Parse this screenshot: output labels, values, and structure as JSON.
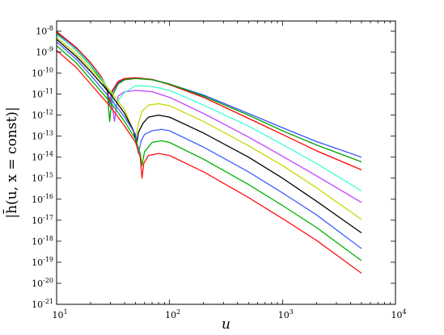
{
  "chart_data": {
    "type": "line",
    "title": "",
    "xlabel": "u",
    "ylabel": "|h̄(u, x = const)|",
    "xscale": "log",
    "yscale": "log",
    "xlim": [
      10,
      10000
    ],
    "ylim": [
      1e-21,
      3e-08
    ],
    "grid": false,
    "x_ticks": [
      {
        "value": 10,
        "base": "10",
        "exp": "1"
      },
      {
        "value": 100,
        "base": "10",
        "exp": "2"
      },
      {
        "value": 1000,
        "base": "10",
        "exp": "3"
      },
      {
        "value": 10000,
        "base": "10",
        "exp": "4"
      }
    ],
    "y_ticks": [
      {
        "value": 1e-08,
        "base": "10",
        "exp": "-8"
      },
      {
        "value": 1e-09,
        "base": "10",
        "exp": "-9"
      },
      {
        "value": 1e-10,
        "base": "10",
        "exp": "-10"
      },
      {
        "value": 1e-11,
        "base": "10",
        "exp": "-11"
      },
      {
        "value": 1e-12,
        "base": "10",
        "exp": "-12"
      },
      {
        "value": 1e-13,
        "base": "10",
        "exp": "-13"
      },
      {
        "value": 1e-14,
        "base": "10",
        "exp": "-14"
      },
      {
        "value": 1e-15,
        "base": "10",
        "exp": "-15"
      },
      {
        "value": 1e-16,
        "base": "10",
        "exp": "-16"
      },
      {
        "value": 1e-17,
        "base": "10",
        "exp": "-17"
      },
      {
        "value": 1e-18,
        "base": "10",
        "exp": "-18"
      },
      {
        "value": 1e-19,
        "base": "10",
        "exp": "-19"
      },
      {
        "value": 1e-20,
        "base": "10",
        "exp": "-20"
      },
      {
        "value": 1e-21,
        "base": "10",
        "exp": "-21"
      }
    ],
    "series": [
      {
        "color": "#3050ff",
        "points": [
          [
            10,
            9e-09
          ],
          [
            15,
            1.5e-09
          ],
          [
            20,
            3e-10
          ],
          [
            25,
            6e-11
          ],
          [
            28,
            1.8e-11
          ],
          [
            29.5,
            3e-12
          ],
          [
            31,
            1.2e-11
          ],
          [
            35,
            3.5e-11
          ],
          [
            40,
            5e-11
          ],
          [
            50,
            5.5e-11
          ],
          [
            70,
            5e-11
          ],
          [
            100,
            3e-11
          ],
          [
            200,
            9e-12
          ],
          [
            500,
            1.2e-12
          ],
          [
            1000,
            2.5e-13
          ],
          [
            2000,
            5.5e-14
          ],
          [
            5000,
            1e-14
          ]
        ]
      },
      {
        "color": "#ff0000",
        "points": [
          [
            10,
            9.5e-09
          ],
          [
            15,
            1.6e-09
          ],
          [
            20,
            3.1e-10
          ],
          [
            25,
            6.5e-11
          ],
          [
            28,
            2e-11
          ],
          [
            29.5,
            4e-12
          ],
          [
            31,
            1.4e-11
          ],
          [
            35,
            4e-11
          ],
          [
            40,
            5.5e-11
          ],
          [
            50,
            6e-11
          ],
          [
            70,
            5e-11
          ],
          [
            100,
            2.8e-11
          ],
          [
            200,
            7e-12
          ],
          [
            500,
            7e-13
          ],
          [
            1000,
            1.2e-13
          ],
          [
            2000,
            2e-14
          ],
          [
            5000,
            2.5e-15
          ]
        ]
      },
      {
        "color": "#00a000",
        "points": [
          [
            10,
            8e-09
          ],
          [
            15,
            1.2e-09
          ],
          [
            20,
            2.3e-10
          ],
          [
            25,
            4.5e-11
          ],
          [
            28,
            1.4e-11
          ],
          [
            29.5,
            5e-13
          ],
          [
            31,
            8e-12
          ],
          [
            35,
            3e-11
          ],
          [
            40,
            4.8e-11
          ],
          [
            50,
            5.5e-11
          ],
          [
            70,
            4.8e-11
          ],
          [
            100,
            3e-11
          ],
          [
            200,
            8e-12
          ],
          [
            500,
            1e-12
          ],
          [
            1000,
            1.8e-13
          ],
          [
            2000,
            3.8e-14
          ],
          [
            5000,
            6e-15
          ]
        ]
      },
      {
        "color": "#c040ff",
        "points": [
          [
            10,
            7e-09
          ],
          [
            15,
            1.3e-09
          ],
          [
            20,
            2.6e-10
          ],
          [
            25,
            5.5e-11
          ],
          [
            30,
            1.2e-11
          ],
          [
            32.5,
            5e-13
          ],
          [
            35,
            8e-12
          ],
          [
            40,
            1.3e-11
          ],
          [
            50,
            1.5e-11
          ],
          [
            70,
            1.3e-11
          ],
          [
            100,
            7e-12
          ],
          [
            200,
            1.2e-12
          ],
          [
            500,
            9e-14
          ],
          [
            1000,
            1.1e-14
          ],
          [
            2000,
            1.3e-15
          ],
          [
            5000,
            7e-17
          ]
        ]
      },
      {
        "color": "#40ffd0",
        "points": [
          [
            10,
            6.5e-09
          ],
          [
            15,
            1.3e-09
          ],
          [
            20,
            2.5e-10
          ],
          [
            25,
            5.5e-11
          ],
          [
            30,
            1.2e-11
          ],
          [
            33,
            2.5e-12
          ],
          [
            36,
            6e-12
          ],
          [
            40,
            1.2e-11
          ],
          [
            50,
            2.5e-11
          ],
          [
            70,
            2.3e-11
          ],
          [
            100,
            1.5e-11
          ],
          [
            200,
            3e-12
          ],
          [
            500,
            3e-13
          ],
          [
            1000,
            4e-14
          ],
          [
            2000,
            5e-15
          ],
          [
            5000,
            2.5e-16
          ]
        ]
      },
      {
        "color": "#c8d800",
        "points": [
          [
            10,
            5e-09
          ],
          [
            15,
            8e-10
          ],
          [
            20,
            1.6e-10
          ],
          [
            30,
            1.4e-11
          ],
          [
            40,
            1.8e-12
          ],
          [
            46,
            3e-13
          ],
          [
            50,
            8e-14
          ],
          [
            53,
            4e-13
          ],
          [
            57,
            1.5e-12
          ],
          [
            65,
            3e-12
          ],
          [
            80,
            3.5e-12
          ],
          [
            100,
            2.8e-12
          ],
          [
            200,
            5e-13
          ],
          [
            500,
            3.5e-14
          ],
          [
            1000,
            4e-15
          ],
          [
            2000,
            3.5e-16
          ],
          [
            5000,
            1.1e-17
          ]
        ]
      },
      {
        "color": "#000000",
        "points": [
          [
            10,
            4e-09
          ],
          [
            15,
            6e-10
          ],
          [
            20,
            1.2e-10
          ],
          [
            30,
            1e-11
          ],
          [
            40,
            1.2e-12
          ],
          [
            48,
            1.8e-13
          ],
          [
            51,
            4e-14
          ],
          [
            53,
            1.5e-13
          ],
          [
            58,
            4e-13
          ],
          [
            65,
            8e-13
          ],
          [
            80,
            1e-12
          ],
          [
            100,
            8e-13
          ],
          [
            200,
            1.4e-13
          ],
          [
            500,
            1e-14
          ],
          [
            1000,
            1e-15
          ],
          [
            2000,
            8e-17
          ],
          [
            5000,
            2.5e-18
          ]
        ]
      },
      {
        "color": "#4060ff",
        "points": [
          [
            10,
            3e-09
          ],
          [
            15,
            4.5e-10
          ],
          [
            20,
            8e-11
          ],
          [
            30,
            6e-12
          ],
          [
            40,
            8e-13
          ],
          [
            50,
            1.2e-13
          ],
          [
            53,
            1.5e-14
          ],
          [
            56,
            6e-14
          ],
          [
            60,
            1.2e-13
          ],
          [
            70,
            1.8e-13
          ],
          [
            85,
            2.1e-13
          ],
          [
            100,
            1.8e-13
          ],
          [
            200,
            3e-14
          ],
          [
            500,
            2e-15
          ],
          [
            1000,
            2e-16
          ],
          [
            2000,
            1.8e-17
          ],
          [
            5000,
            4.5e-19
          ]
        ]
      },
      {
        "color": "#00b000",
        "points": [
          [
            10,
            2e-09
          ],
          [
            15,
            3e-10
          ],
          [
            20,
            5e-11
          ],
          [
            30,
            4e-12
          ],
          [
            40,
            5e-13
          ],
          [
            50,
            7e-14
          ],
          [
            55,
            1.5e-14
          ],
          [
            57,
            4e-15
          ],
          [
            60,
            1.8e-14
          ],
          [
            70,
            5e-14
          ],
          [
            85,
            6e-14
          ],
          [
            100,
            5e-14
          ],
          [
            200,
            8e-15
          ],
          [
            500,
            5e-16
          ],
          [
            1000,
            5e-17
          ],
          [
            2000,
            4.5e-18
          ],
          [
            5000,
            1.2e-19
          ]
        ]
      },
      {
        "color": "#ff1010",
        "points": [
          [
            10,
            1.2e-09
          ],
          [
            15,
            1.8e-10
          ],
          [
            20,
            3e-11
          ],
          [
            30,
            2.5e-12
          ],
          [
            40,
            3e-13
          ],
          [
            50,
            5e-14
          ],
          [
            55,
            1e-14
          ],
          [
            57,
            1e-15
          ],
          [
            59,
            5e-15
          ],
          [
            65,
            1.2e-14
          ],
          [
            80,
            1.5e-14
          ],
          [
            100,
            1.2e-14
          ],
          [
            200,
            2e-15
          ],
          [
            500,
            1.2e-16
          ],
          [
            1000,
            1.2e-17
          ],
          [
            2000,
            1.1e-18
          ],
          [
            5000,
            3e-20
          ]
        ]
      }
    ]
  }
}
